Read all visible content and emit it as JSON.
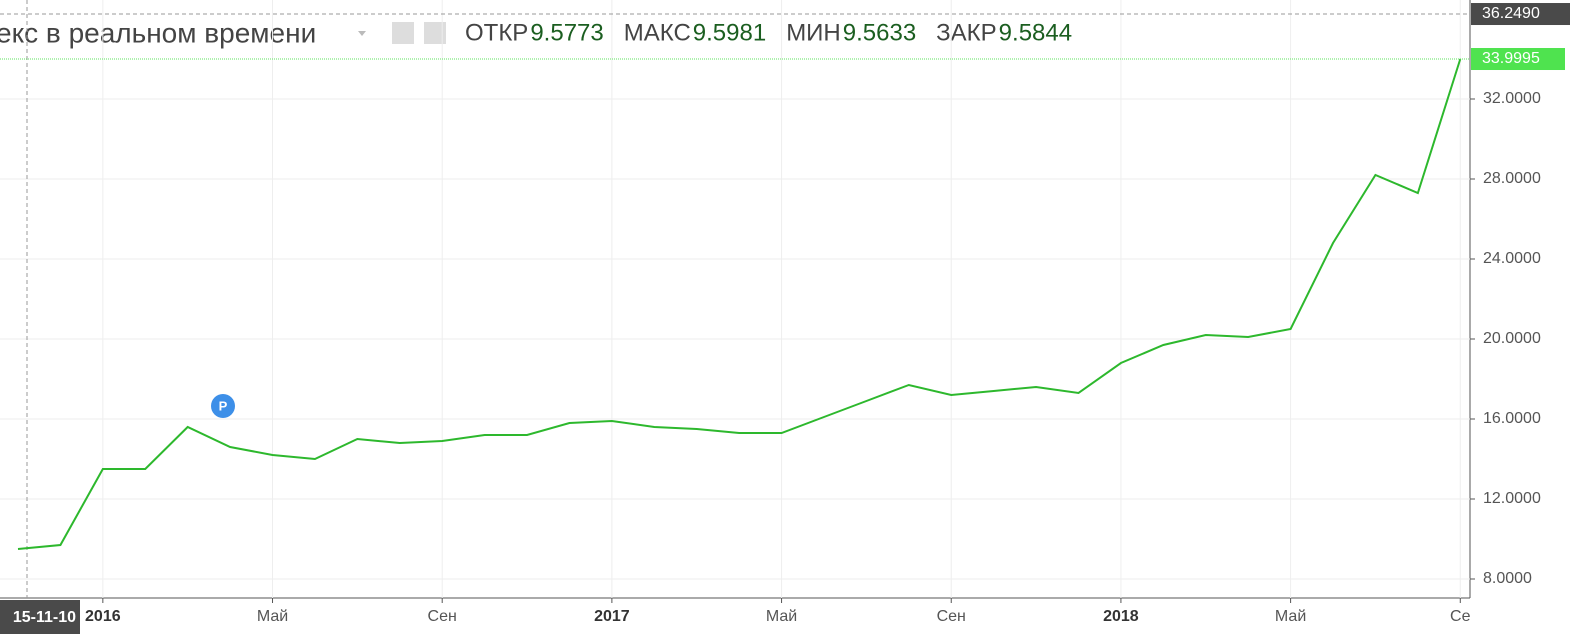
{
  "header": {
    "title": "екс в реальном времени",
    "stats": [
      {
        "label": "ОТКР",
        "value": 9.5773
      },
      {
        "label": "МАКС",
        "value": 9.5981
      },
      {
        "label": "МИН",
        "value": 9.5633
      },
      {
        "label": "ЗАКР",
        "value": 9.5844
      }
    ]
  },
  "chart_data": {
    "type": "line",
    "categories": [
      null,
      null,
      "2016",
      null,
      null,
      null,
      "Май",
      null,
      null,
      null,
      "Сен",
      null,
      null,
      null,
      "2017",
      null,
      null,
      null,
      "Май",
      null,
      null,
      null,
      "Сен",
      null,
      null,
      null,
      "2018",
      null,
      null,
      null,
      "Май",
      null,
      null,
      null,
      "Се"
    ],
    "series": [
      {
        "color": "#2db82d",
        "values": [
          9.5,
          9.7,
          13.5,
          13.5,
          15.6,
          14.6,
          14.2,
          14.0,
          15.0,
          14.8,
          14.9,
          15.2,
          15.2,
          15.8,
          15.9,
          15.6,
          15.5,
          15.3,
          15.3,
          16.1,
          16.9,
          17.7,
          17.2,
          17.4,
          17.6,
          17.3,
          18.8,
          19.7,
          20.2,
          20.1,
          20.5,
          24.8,
          28.2,
          27.3,
          33.9995
        ]
      }
    ],
    "ylim": [
      7.05,
      36.95
    ],
    "yticks": [
      {
        "value": 8,
        "label": "8.0000"
      },
      {
        "value": 12,
        "label": "12.0000"
      },
      {
        "value": 16,
        "label": "16.0000"
      },
      {
        "value": 20,
        "label": "20.0000"
      },
      {
        "value": 24,
        "label": "24.0000"
      },
      {
        "value": 28,
        "label": "28.0000"
      },
      {
        "value": 32,
        "label": "32.0000"
      }
    ],
    "crosshair": {
      "x_label": "15-11-10",
      "y": {
        "value": 36.249,
        "label": "36.2490"
      }
    },
    "last_price": {
      "value": 33.9995,
      "label": "33.9995"
    },
    "grid": true
  }
}
